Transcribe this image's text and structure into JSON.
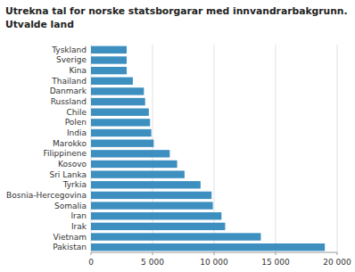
{
  "chart_data": {
    "type": "bar",
    "orientation": "horizontal",
    "title": "Utrekna tal for norske statsborgarar med innvandrarbakgrunn.",
    "subtitle": "Utvalde land",
    "categories": [
      "Pakistan",
      "Vietnam",
      "Irak",
      "Iran",
      "Somalia",
      "Bosnia-Hercegovina",
      "Tyrkia",
      "Sri Lanka",
      "Kosovo",
      "Filippinene",
      "Marokko",
      "India",
      "Polen",
      "Chile",
      "Russland",
      "Danmark",
      "Thailand",
      "Kina",
      "Sverige",
      "Tyskland"
    ],
    "values": [
      19000,
      13800,
      10900,
      10600,
      9900,
      9800,
      8900,
      7600,
      7000,
      6400,
      5100,
      4900,
      4800,
      4700,
      4400,
      4300,
      3400,
      2900,
      2900,
      2900
    ],
    "color": "#3d8fc0",
    "xlim": [
      0,
      20000
    ],
    "xticks": [
      0,
      {
        "value": 5000,
        "label": "5 000"
      },
      {
        "value": 10000,
        "label": "10 000"
      },
      {
        "value": 15000,
        "label": "15 000"
      },
      {
        "value": 20000,
        "label": "20 000"
      }
    ],
    "grid": true
  }
}
